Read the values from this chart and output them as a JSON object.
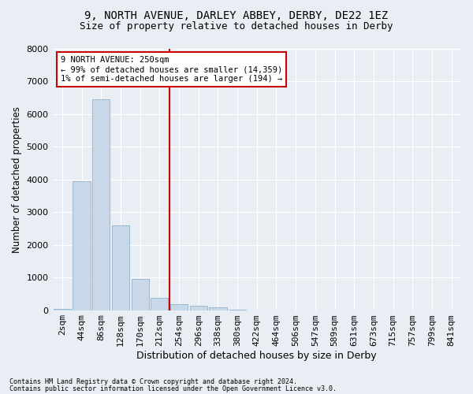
{
  "title1": "9, NORTH AVENUE, DARLEY ABBEY, DERBY, DE22 1EZ",
  "title2": "Size of property relative to detached houses in Derby",
  "xlabel": "Distribution of detached houses by size in Derby",
  "ylabel": "Number of detached properties",
  "categories": [
    "2sqm",
    "44sqm",
    "86sqm",
    "128sqm",
    "170sqm",
    "212sqm",
    "254sqm",
    "296sqm",
    "338sqm",
    "380sqm",
    "422sqm",
    "464sqm",
    "506sqm",
    "547sqm",
    "589sqm",
    "631sqm",
    "673sqm",
    "715sqm",
    "757sqm",
    "799sqm",
    "841sqm"
  ],
  "values": [
    30,
    3950,
    6450,
    2600,
    950,
    380,
    185,
    130,
    80,
    10,
    0,
    0,
    0,
    0,
    0,
    0,
    0,
    0,
    0,
    0,
    0
  ],
  "bar_color": "#c8d8e8",
  "bar_edge_color": "#7aaac8",
  "vline_color": "#cc0000",
  "annotation_text": "9 NORTH AVENUE: 250sqm\n← 99% of detached houses are smaller (14,359)\n1% of semi-detached houses are larger (194) →",
  "annotation_box_color": "#ffffff",
  "annotation_box_edge_color": "#cc0000",
  "ylim": [
    0,
    8000
  ],
  "yticks": [
    0,
    1000,
    2000,
    3000,
    4000,
    5000,
    6000,
    7000,
    8000
  ],
  "footer1": "Contains HM Land Registry data © Crown copyright and database right 2024.",
  "footer2": "Contains public sector information licensed under the Open Government Licence v3.0.",
  "bg_color": "#e8eef4",
  "plot_bg_color": "#e8eef4",
  "grid_color": "#ffffff",
  "title1_fontsize": 10,
  "title2_fontsize": 9,
  "xlabel_fontsize": 9,
  "ylabel_fontsize": 8.5,
  "tick_fontsize": 8,
  "annot_fontsize": 7.5,
  "footer_fontsize": 6
}
